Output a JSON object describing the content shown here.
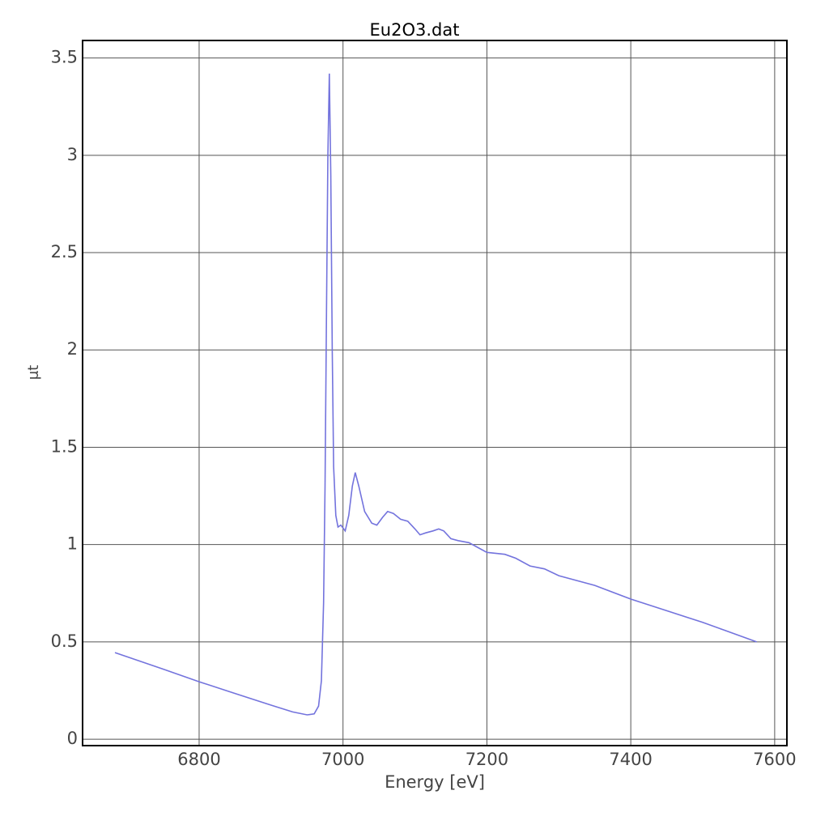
{
  "chart_data": {
    "type": "line",
    "title": "Eu2O3.dat",
    "x_label": "Energy [eV]",
    "y_label": "μt",
    "xlim": [
      6638,
      7617
    ],
    "ylim": [
      -0.033,
      3.59
    ],
    "xticks": [
      6800,
      7000,
      7200,
      7400,
      7600
    ],
    "yticks": [
      0,
      0.5,
      1,
      1.5,
      2,
      2.5,
      3,
      3.5
    ],
    "grid": true,
    "series": [
      {
        "name": "Eu2O3.dat",
        "color": "#7373dd",
        "x": [
          6683,
          6750,
          6800,
          6850,
          6900,
          6930,
          6950,
          6960,
          6966,
          6970,
          6973,
          6975,
          6977,
          6979,
          6981,
          6983,
          6985,
          6987,
          6990,
          6993,
          6997,
          7003,
          7008,
          7013,
          7017,
          7022,
          7030,
          7040,
          7047,
          7055,
          7062,
          7070,
          7080,
          7090,
          7100,
          7107,
          7115,
          7125,
          7133,
          7140,
          7150,
          7160,
          7175,
          7190,
          7200,
          7225,
          7240,
          7260,
          7280,
          7300,
          7350,
          7400,
          7450,
          7500,
          7530,
          7575
        ],
        "values": [
          0.445,
          0.36,
          0.295,
          0.235,
          0.175,
          0.14,
          0.125,
          0.13,
          0.17,
          0.3,
          0.7,
          1.3,
          2.2,
          3.0,
          3.42,
          2.9,
          2.0,
          1.4,
          1.15,
          1.09,
          1.1,
          1.07,
          1.15,
          1.3,
          1.37,
          1.3,
          1.17,
          1.11,
          1.1,
          1.14,
          1.17,
          1.16,
          1.13,
          1.12,
          1.08,
          1.05,
          1.06,
          1.07,
          1.08,
          1.07,
          1.03,
          1.02,
          1.01,
          0.98,
          0.96,
          0.95,
          0.93,
          0.89,
          0.875,
          0.84,
          0.79,
          0.72,
          0.66,
          0.6,
          0.56,
          0.5
        ]
      }
    ]
  }
}
